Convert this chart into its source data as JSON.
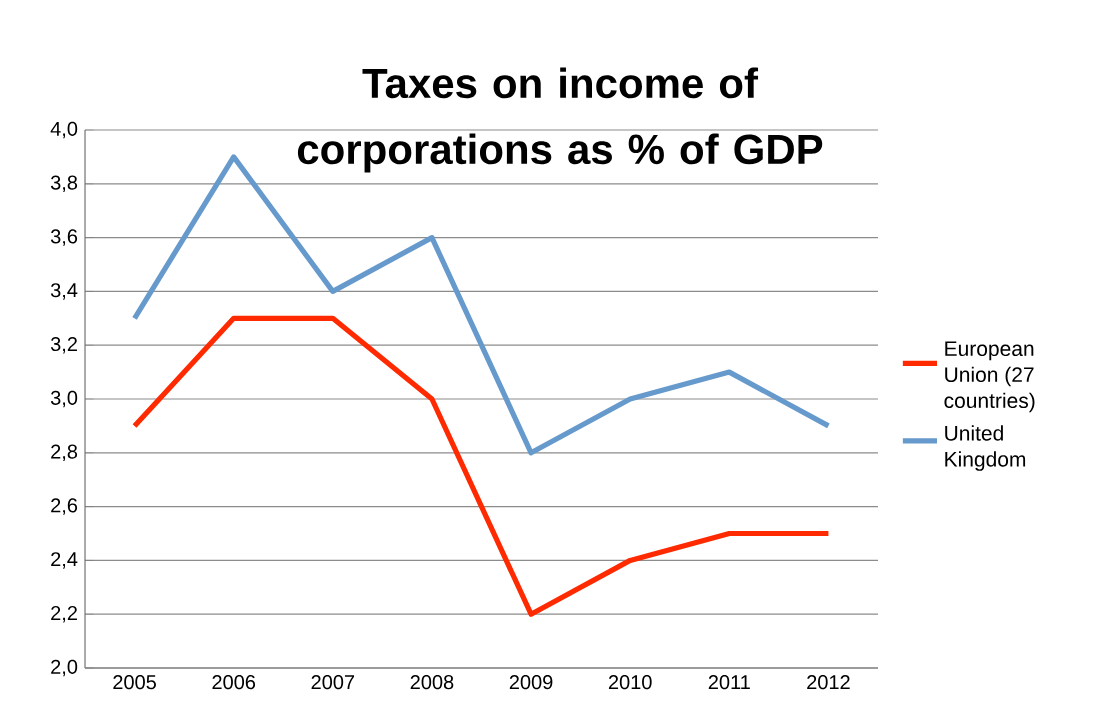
{
  "chart_data": {
    "type": "line",
    "title": "Taxes on income of corporations as % of GDP",
    "categories": [
      "2005",
      "2006",
      "2007",
      "2008",
      "2009",
      "2010",
      "2011",
      "2012"
    ],
    "series": [
      {
        "name": "European Union (27 countries)",
        "color": "#ff2a00",
        "values": [
          2.9,
          3.3,
          3.3,
          3.0,
          2.2,
          2.4,
          2.5,
          2.5
        ]
      },
      {
        "name": "United Kingdom",
        "color": "#6699cc",
        "values": [
          3.3,
          3.9,
          3.4,
          3.6,
          2.8,
          3.0,
          3.1,
          2.9
        ]
      }
    ],
    "ylim": [
      2.0,
      4.0
    ],
    "yticks": [
      {
        "value": 2.0,
        "label": "2,0"
      },
      {
        "value": 2.2,
        "label": "2,2"
      },
      {
        "value": 2.4,
        "label": "2,4"
      },
      {
        "value": 2.6,
        "label": "2,6"
      },
      {
        "value": 2.8,
        "label": "2,8"
      },
      {
        "value": 3.0,
        "label": "3,0"
      },
      {
        "value": 3.2,
        "label": "3,2"
      },
      {
        "value": 3.4,
        "label": "3,4"
      },
      {
        "value": 3.6,
        "label": "3,6"
      },
      {
        "value": 3.8,
        "label": "3,8"
      },
      {
        "value": 4.0,
        "label": "4,0"
      }
    ],
    "grid": "y",
    "legend": "right",
    "marker": "none",
    "line_style": "solid"
  }
}
